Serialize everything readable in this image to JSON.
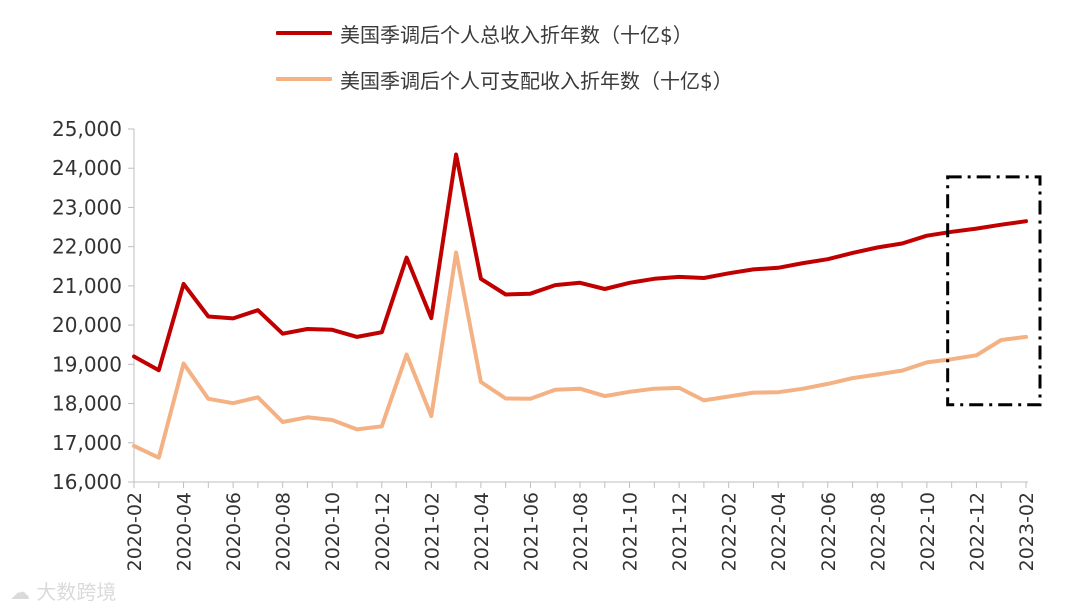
{
  "chart_data": {
    "type": "line",
    "title": "",
    "xlabel": "",
    "ylabel": "",
    "ylim": [
      16000,
      25000
    ],
    "yticks": [
      "16,000",
      "17,000",
      "18,000",
      "19,000",
      "20,000",
      "21,000",
      "22,000",
      "23,000",
      "24,000",
      "25,000"
    ],
    "ytick_values": [
      16000,
      17000,
      18000,
      19000,
      20000,
      21000,
      22000,
      23000,
      24000,
      25000
    ],
    "x": [
      "2020-02",
      "2020-03",
      "2020-04",
      "2020-05",
      "2020-06",
      "2020-07",
      "2020-08",
      "2020-09",
      "2020-10",
      "2020-11",
      "2020-12",
      "2021-01",
      "2021-02",
      "2021-03",
      "2021-04",
      "2021-05",
      "2021-06",
      "2021-07",
      "2021-08",
      "2021-09",
      "2021-10",
      "2021-11",
      "2021-12",
      "2022-01",
      "2022-02",
      "2022-03",
      "2022-04",
      "2022-05",
      "2022-06",
      "2022-07",
      "2022-08",
      "2022-09",
      "2022-10",
      "2022-11",
      "2022-12",
      "2023-01",
      "2023-02"
    ],
    "xticks": [
      "2020-02",
      "2020-04",
      "2020-06",
      "2020-08",
      "2020-10",
      "2020-12",
      "2021-02",
      "2021-04",
      "2021-06",
      "2021-08",
      "2021-10",
      "2021-12",
      "2022-02",
      "2022-04",
      "2022-06",
      "2022-08",
      "2022-10",
      "2022-12",
      "2023-02"
    ],
    "grid": false,
    "legend_position": "top-center",
    "series": [
      {
        "name": "美国季调后个人总收入折年数（十亿$）",
        "color": "#c00000",
        "values": [
          19200,
          18850,
          21050,
          20220,
          20170,
          20380,
          19780,
          19900,
          19880,
          19700,
          19820,
          21720,
          20180,
          24350,
          21180,
          20780,
          20800,
          21020,
          21080,
          20920,
          21080,
          21180,
          21230,
          21200,
          21320,
          21420,
          21460,
          21580,
          21680,
          21840,
          21980,
          22080,
          22280,
          22380,
          22460,
          22560,
          22650
        ]
      },
      {
        "name": "美国季调后个人可支配收入折年数（十亿$）",
        "color": "#f4b183",
        "values": [
          16920,
          16620,
          19020,
          18120,
          18010,
          18160,
          17530,
          17650,
          17580,
          17340,
          17420,
          19250,
          17680,
          21850,
          18550,
          18130,
          18120,
          18350,
          18380,
          18190,
          18300,
          18380,
          18400,
          18080,
          18180,
          18280,
          18290,
          18380,
          18500,
          18650,
          18740,
          18840,
          19050,
          19130,
          19230,
          19620,
          19700
        ]
      }
    ],
    "annotation": {
      "type": "dash-dot-rectangle",
      "x_from": "2022-11",
      "x_to": "2023-02",
      "y_from": 17970,
      "y_to": 23780,
      "color": "#000000"
    }
  },
  "legend": {
    "items": [
      {
        "label": "美国季调后个人总收入折年数（十亿$）",
        "color": "#c00000"
      },
      {
        "label": "美国季调后个人可支配收入折年数（十亿$）",
        "color": "#f4b183"
      }
    ]
  },
  "watermark": {
    "text": "大数跨境",
    "icon": "cloud-logo-icon"
  }
}
